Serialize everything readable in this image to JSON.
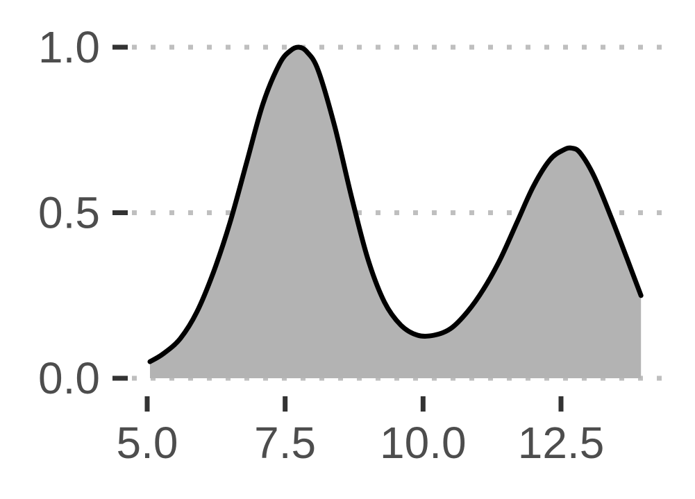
{
  "chart_data": {
    "type": "area",
    "title": "",
    "xlabel": "",
    "ylabel": "",
    "xlim": [
      5.0,
      14.0
    ],
    "ylim": [
      0.0,
      1.0
    ],
    "x_ticks": [
      5.0,
      7.5,
      10.0,
      12.5
    ],
    "x_tick_labels": [
      "5.0",
      "7.5",
      "10.0",
      "12.5"
    ],
    "y_ticks": [
      0.0,
      0.5,
      1.0
    ],
    "y_tick_labels": [
      "0.0",
      "0.5",
      "1.0"
    ],
    "grid": "horizontal dotted",
    "legend": "none",
    "series": [
      {
        "x": [
          5.05,
          5.3,
          5.6,
          5.9,
          6.2,
          6.5,
          6.8,
          7.1,
          7.4,
          7.6,
          7.75,
          7.9,
          8.1,
          8.4,
          8.7,
          9.0,
          9.3,
          9.6,
          9.9,
          10.2,
          10.5,
          10.8,
          11.1,
          11.4,
          11.7,
          12.0,
          12.3,
          12.55,
          12.7,
          12.85,
          13.1,
          13.4,
          13.7,
          13.95
        ],
        "y": [
          0.05,
          0.075,
          0.12,
          0.2,
          0.32,
          0.47,
          0.65,
          0.83,
          0.95,
          0.99,
          1.0,
          0.985,
          0.93,
          0.76,
          0.55,
          0.36,
          0.23,
          0.16,
          0.13,
          0.13,
          0.15,
          0.2,
          0.27,
          0.36,
          0.47,
          0.58,
          0.66,
          0.69,
          0.695,
          0.68,
          0.61,
          0.49,
          0.36,
          0.25
        ]
      }
    ],
    "colors": {
      "fill": "#b3b3b3",
      "line": "#000000",
      "grid": "#bfbfbf",
      "tick": "#333333",
      "text": "#4d4d4d"
    }
  }
}
